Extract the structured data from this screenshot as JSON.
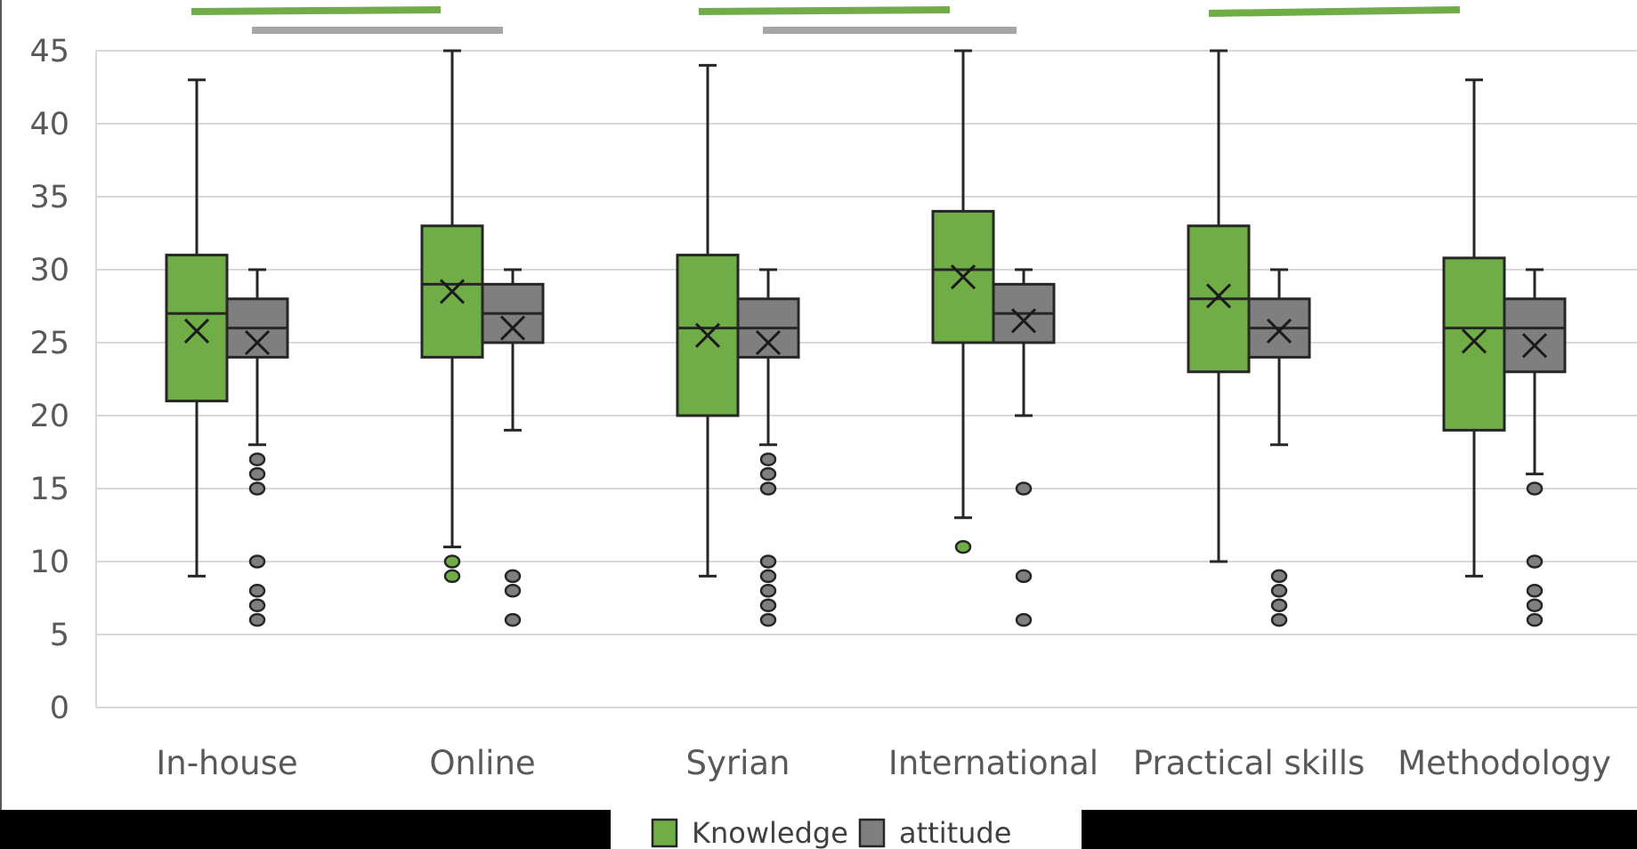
{
  "chart_data": {
    "type": "box",
    "xlabel": "",
    "ylabel": "",
    "ylim": [
      0,
      45
    ],
    "yticks": [
      0,
      5,
      10,
      15,
      20,
      25,
      30,
      35,
      40,
      45
    ],
    "grid": true,
    "legend_position": "bottom",
    "categories": [
      "In-house",
      "Online",
      "Syrian",
      "International",
      "Practical skills",
      "Methodology"
    ],
    "series": [
      {
        "name": "Knowledge",
        "color": "#70AD47",
        "boxes": [
          {
            "min": 9,
            "q1": 21,
            "median": 27,
            "q3": 31,
            "max": 43,
            "mean": 25.8,
            "outliers": []
          },
          {
            "min": 11,
            "q1": 24,
            "median": 29,
            "q3": 33,
            "max": 45,
            "mean": 28.5,
            "outliers": [
              9,
              10
            ]
          },
          {
            "min": 9,
            "q1": 20,
            "median": 26,
            "q3": 31,
            "max": 44,
            "mean": 25.5,
            "outliers": []
          },
          {
            "min": 13,
            "q1": 25,
            "median": 30,
            "q3": 34,
            "max": 45,
            "mean": 29.5,
            "outliers": [
              11
            ]
          },
          {
            "min": 10,
            "q1": 23,
            "median": 28,
            "q3": 33,
            "max": 45,
            "mean": 28.2,
            "outliers": []
          },
          {
            "min": 9,
            "q1": 19,
            "median": 26,
            "q3": 30.8,
            "max": 43,
            "mean": 25.1,
            "outliers": []
          }
        ]
      },
      {
        "name": "attitude",
        "color": "#7F7F7F",
        "boxes": [
          {
            "min": 18,
            "q1": 24,
            "median": 26,
            "q3": 28,
            "max": 30,
            "mean": 25.0,
            "outliers": [
              6,
              7,
              8,
              10,
              15,
              16,
              17
            ]
          },
          {
            "min": 19,
            "q1": 25,
            "median": 27,
            "q3": 29,
            "max": 30,
            "mean": 26.0,
            "outliers": [
              6,
              8,
              9
            ]
          },
          {
            "min": 18,
            "q1": 24,
            "median": 26,
            "q3": 28,
            "max": 30,
            "mean": 25.0,
            "outliers": [
              6,
              7,
              8,
              9,
              10,
              15,
              16,
              17
            ]
          },
          {
            "min": 20,
            "q1": 25,
            "median": 27,
            "q3": 29,
            "max": 30,
            "mean": 26.5,
            "outliers": [
              6,
              9,
              15
            ]
          },
          {
            "min": 18,
            "q1": 24,
            "median": 26,
            "q3": 28,
            "max": 30,
            "mean": 25.8,
            "outliers": [
              6,
              7,
              8,
              9
            ]
          },
          {
            "min": 16,
            "q1": 23,
            "median": 26,
            "q3": 28,
            "max": 30,
            "mean": 24.8,
            "outliers": [
              6,
              7,
              8,
              10,
              15
            ]
          }
        ]
      }
    ]
  }
}
